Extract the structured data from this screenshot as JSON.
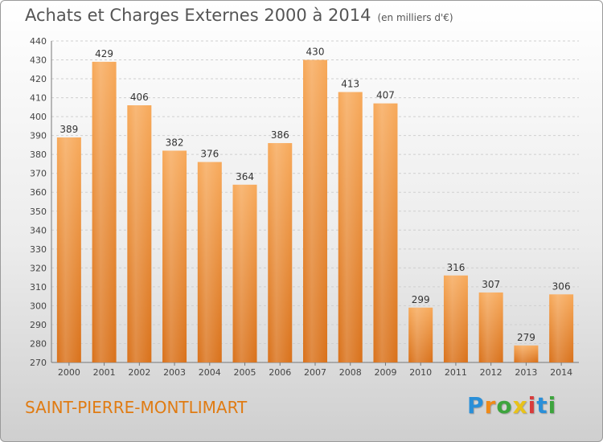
{
  "header": {
    "title": "Achats et Charges Externes 2000 à 2014",
    "unit": "(en milliers d'€)"
  },
  "footer": {
    "commune": "SAINT-PIERRE-MONTLIMART",
    "logo_text": "Proxiti"
  },
  "colors": {
    "bar_top": "#f7a95a",
    "bar_bottom": "#d9711a",
    "commune_text": "#e07b12"
  },
  "chart_data": {
    "type": "bar",
    "title": "Achats et Charges Externes 2000 à 2014",
    "subtitle": "(en milliers d'€)",
    "categories": [
      "2000",
      "2001",
      "2002",
      "2003",
      "2004",
      "2005",
      "2006",
      "2007",
      "2008",
      "2009",
      "2010",
      "2011",
      "2012",
      "2013",
      "2014"
    ],
    "values": [
      389,
      429,
      406,
      382,
      376,
      364,
      386,
      430,
      413,
      407,
      299,
      316,
      307,
      279,
      306
    ],
    "ylim": [
      270,
      440
    ],
    "yticks": [
      270,
      280,
      290,
      300,
      310,
      320,
      330,
      340,
      350,
      360,
      370,
      380,
      390,
      400,
      410,
      420,
      430,
      440
    ],
    "grid": true,
    "data_labels": true
  }
}
